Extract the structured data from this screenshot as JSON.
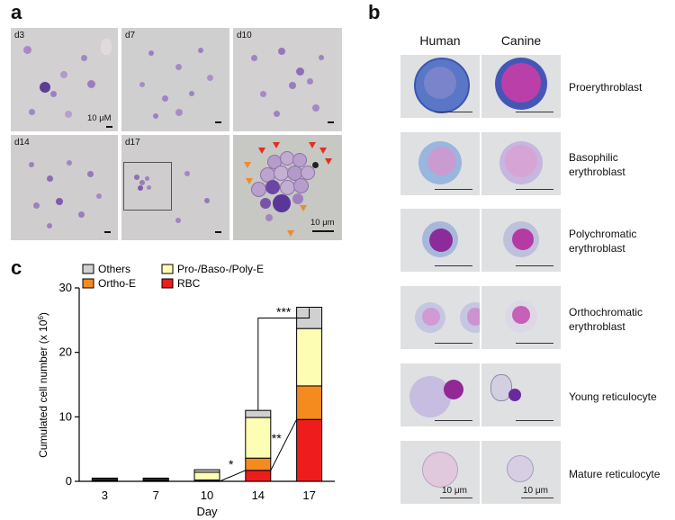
{
  "panels": {
    "a": "a",
    "b": "b",
    "c": "c"
  },
  "panel_a": {
    "images": [
      {
        "day": "d3"
      },
      {
        "day": "d7"
      },
      {
        "day": "d10"
      },
      {
        "day": "d14"
      },
      {
        "day": "d17"
      },
      {
        "day": ""
      }
    ],
    "scale_label_d3": "10 μM",
    "scale_label_zoom": "10 μm"
  },
  "panel_b": {
    "col_human": "Human",
    "col_canine": "Canine",
    "stages": [
      {
        "line1": "Proerythroblast",
        "line2": ""
      },
      {
        "line1": "Basophilic",
        "line2": "erythroblast"
      },
      {
        "line1": "Polychromatic",
        "line2": "erythroblast"
      },
      {
        "line1": "Orthochromatic",
        "line2": "erythroblast"
      },
      {
        "line1": "Young reticulocyte",
        "line2": ""
      },
      {
        "line1": "Mature reticulocyte",
        "line2": ""
      }
    ],
    "scale_label_human": "10 μm",
    "scale_label_canine": "10 μm"
  },
  "colors": {
    "others": "#d0d0d0",
    "ortho": "#f58a1f",
    "pro": "#fdfdb4",
    "rbc": "#ee1c1c"
  },
  "chart_data": {
    "type": "bar",
    "stacked": true,
    "categories": [
      "3",
      "7",
      "10",
      "14",
      "17"
    ],
    "series": [
      {
        "name": "RBC",
        "values": [
          0.1,
          0.1,
          0.1,
          1.7,
          9.6
        ]
      },
      {
        "name": "Ortho-E",
        "values": [
          0.1,
          0.1,
          0.1,
          1.9,
          5.2
        ]
      },
      {
        "name": "Pro-/Baso-/Poly-E",
        "values": [
          0.2,
          0.2,
          1.2,
          6.3,
          8.9
        ]
      },
      {
        "name": "Others",
        "values": [
          0.1,
          0.1,
          0.4,
          1.1,
          3.3
        ]
      }
    ],
    "xlabel": "Day",
    "ylabel": "Cumulated cell number (x 10",
    "ylabel_sup": "6",
    "ylabel_end": ")",
    "ylim": [
      0,
      30
    ],
    "yticks": [
      "0",
      "10",
      "20",
      "30"
    ],
    "legend": [
      "Others",
      "Pro-/Baso-/Poly-E",
      "Ortho-E",
      "RBC"
    ],
    "annotations": {
      "sig1": "*",
      "sig2": "**",
      "sig3": "***"
    }
  }
}
